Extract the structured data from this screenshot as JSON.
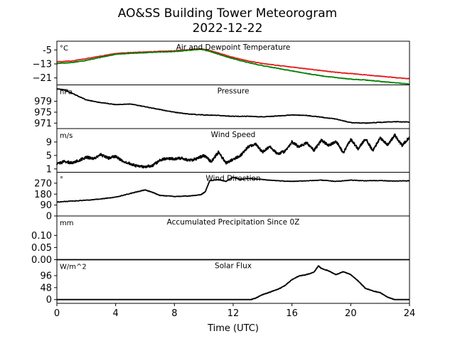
{
  "figure": {
    "title_line1": "AO&SS Building Tower Meteorogram",
    "title_line2": "2022-12-22",
    "xlabel": "Time (UTC)",
    "xlim": [
      0,
      24
    ],
    "xticks": [
      0,
      4,
      8,
      12,
      16,
      20,
      24
    ]
  },
  "chart_data": [
    {
      "type": "line",
      "title": "Air and Dewpoint Temperature",
      "unit": "°C",
      "ylim": [
        -25,
        0
      ],
      "yticks": [
        "-5",
        "−13",
        "−21"
      ],
      "ytick_values": [
        -5,
        -13,
        -21
      ],
      "series": [
        {
          "color": "#e41a1c",
          "x": [
            0,
            1,
            2,
            3,
            4,
            5,
            6,
            7,
            8,
            9,
            9.8,
            10.5,
            11,
            12,
            13,
            14,
            15,
            16,
            17,
            18,
            19,
            20,
            21,
            22,
            23,
            24
          ],
          "y": [
            -11.8,
            -11.3,
            -10.0,
            -8.5,
            -7.0,
            -6.5,
            -6.2,
            -5.8,
            -5.5,
            -4.8,
            -4.3,
            -5.5,
            -6.8,
            -9.3,
            -11.3,
            -12.8,
            -13.8,
            -14.8,
            -15.8,
            -16.8,
            -17.8,
            -18.5,
            -19.3,
            -20.0,
            -20.8,
            -21.5
          ]
        },
        {
          "color": "#008000",
          "x": [
            0,
            1,
            2,
            3,
            4,
            5,
            6,
            7,
            8,
            9,
            9.8,
            10.5,
            11,
            12,
            13,
            14,
            15,
            16,
            17,
            18,
            19,
            20,
            21,
            22,
            23,
            24
          ],
          "y": [
            -12.8,
            -12.2,
            -11.0,
            -9.2,
            -7.5,
            -6.9,
            -6.6,
            -6.2,
            -5.9,
            -5.2,
            -4.6,
            -6.0,
            -7.5,
            -10.0,
            -12.2,
            -14.0,
            -15.5,
            -17.0,
            -18.5,
            -19.8,
            -20.8,
            -21.7,
            -22.2,
            -23.0,
            -23.8,
            -24.5
          ]
        }
      ]
    },
    {
      "type": "line",
      "title": "Pressure",
      "unit": "hPa",
      "ylim": [
        969,
        985
      ],
      "yticks": [
        "979",
        "975",
        "971"
      ],
      "ytick_values": [
        979,
        975,
        971
      ],
      "series": [
        {
          "color": "#000000",
          "x": [
            0,
            0.5,
            1,
            2,
            3,
            4,
            5,
            6,
            7,
            8,
            9,
            10,
            11,
            12,
            13,
            14,
            15,
            16,
            17,
            18,
            19,
            20,
            21,
            22,
            23,
            24
          ],
          "y": [
            983.5,
            983.2,
            982.0,
            979.5,
            978.5,
            977.8,
            978.0,
            977.0,
            976.0,
            975.0,
            974.3,
            974.0,
            973.8,
            973.5,
            973.5,
            973.3,
            973.6,
            974.0,
            973.8,
            973.2,
            972.5,
            971.2,
            971.0,
            971.3,
            971.5,
            971.4
          ]
        }
      ]
    },
    {
      "type": "line",
      "title": "Wind Speed",
      "unit": "m/s",
      "ylim": [
        0,
        13
      ],
      "yticks": [
        "9",
        "5",
        "1"
      ],
      "ytick_values": [
        9,
        5,
        1
      ],
      "series": [
        {
          "color": "#000000",
          "x": [
            0,
            0.5,
            1,
            1.5,
            2,
            2.5,
            3,
            3.5,
            4,
            4.5,
            5,
            5.5,
            6,
            6.5,
            7,
            7.5,
            8,
            8.5,
            9,
            9.5,
            10,
            10.5,
            11,
            11.5,
            12,
            12.5,
            13,
            13.5,
            14,
            14.5,
            15,
            15.5,
            16,
            16.5,
            17,
            17.5,
            18,
            18.5,
            19,
            19.5,
            20,
            20.5,
            21,
            21.5,
            22,
            22.5,
            23,
            23.5,
            24
          ],
          "y": [
            2.5,
            3.2,
            2.8,
            3.5,
            4.5,
            4.0,
            5.2,
            4.2,
            4.8,
            3.2,
            2.5,
            1.8,
            1.6,
            2.0,
            3.5,
            4.2,
            4.0,
            4.2,
            3.5,
            4.0,
            5.0,
            3.2,
            6.0,
            2.8,
            3.8,
            5.0,
            7.5,
            8.5,
            6.0,
            7.8,
            5.5,
            6.2,
            9.0,
            7.5,
            8.8,
            6.5,
            9.5,
            8.0,
            9.2,
            5.8,
            9.8,
            7.0,
            10.0,
            6.5,
            10.2,
            8.2,
            11.0,
            8.0,
            10.5
          ]
        }
      ]
    },
    {
      "type": "line",
      "title": "Wind Direction",
      "unit": "°",
      "ylim": [
        0,
        360
      ],
      "yticks": [
        "270",
        "180",
        "90",
        "0"
      ],
      "ytick_values": [
        270,
        180,
        90,
        0
      ],
      "series": [
        {
          "color": "#000000",
          "x": [
            0,
            1,
            2,
            3,
            4,
            5,
            5.5,
            6,
            6.5,
            7,
            8,
            9,
            9.8,
            10.1,
            10.4,
            11,
            11.5,
            12,
            12.5,
            13,
            14,
            15,
            16,
            17,
            18,
            19,
            20,
            21,
            22,
            23,
            24
          ],
          "y": [
            115,
            122,
            130,
            140,
            155,
            185,
            200,
            215,
            195,
            170,
            160,
            165,
            175,
            200,
            290,
            300,
            285,
            320,
            300,
            310,
            300,
            290,
            285,
            290,
            295,
            285,
            295,
            290,
            292,
            288,
            290
          ]
        }
      ]
    },
    {
      "type": "line",
      "title": "Accumulated Precipitation Since 0Z",
      "unit": "mm",
      "ylim": [
        0,
        0.18
      ],
      "yticks": [
        "0.10",
        "0.05",
        "0.00"
      ],
      "ytick_values": [
        0.1,
        0.05,
        0
      ],
      "series": [
        {
          "color": "#000000",
          "x": [
            0,
            24
          ],
          "y": [
            0,
            0
          ]
        }
      ]
    },
    {
      "type": "line",
      "title": "Solar Flux",
      "unit": "W/m^2",
      "ylim": [
        -15,
        160
      ],
      "yticks": [
        "96",
        "48",
        "0"
      ],
      "ytick_values": [
        96,
        48,
        0
      ],
      "series": [
        {
          "color": "#000000",
          "x": [
            0,
            13.2,
            13.5,
            14,
            14.5,
            15,
            15.5,
            16,
            16.5,
            17,
            17.5,
            17.8,
            18,
            18.5,
            19,
            19.5,
            20,
            20.5,
            21,
            21.5,
            22,
            22.5,
            23,
            24
          ],
          "y": [
            0,
            0,
            5,
            20,
            30,
            40,
            55,
            80,
            95,
            100,
            110,
            135,
            125,
            115,
            100,
            112,
            100,
            75,
            45,
            35,
            28,
            10,
            0,
            0
          ]
        }
      ]
    }
  ]
}
